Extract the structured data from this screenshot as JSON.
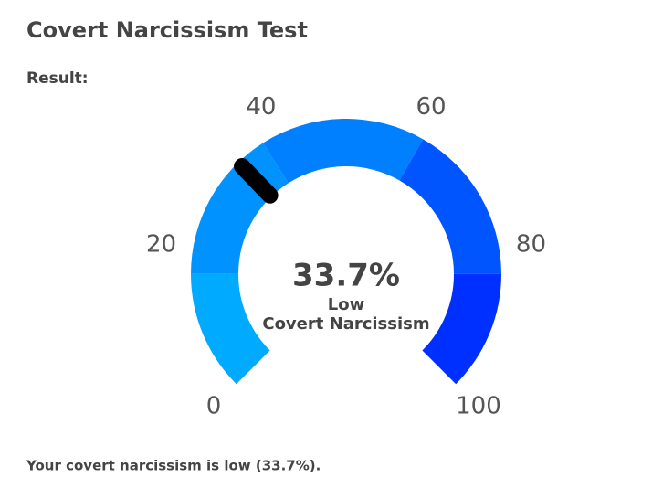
{
  "chart_data": {
    "type": "gauge",
    "title": "Covert Narcissism Test",
    "subtitle": "Result:",
    "value": 33.7,
    "value_label": "33.7%",
    "center_labels": [
      "Low",
      "Covert Narcissism"
    ],
    "xlim": [
      0,
      100
    ],
    "xticks": [
      0,
      20,
      40,
      60,
      80,
      100
    ],
    "segments": [
      {
        "from": 0,
        "to": 16.7,
        "color": "#00aaff"
      },
      {
        "from": 16.7,
        "to": 38,
        "color": "#0092ff"
      },
      {
        "from": 38,
        "to": 61,
        "color": "#0080ff"
      },
      {
        "from": 61,
        "to": 83.3,
        "color": "#0055ff"
      },
      {
        "from": 83.3,
        "to": 100,
        "color": "#0030ff"
      }
    ],
    "needle_color": "#000000",
    "annotation": "Your covert narcissism is low (33.7%)."
  }
}
